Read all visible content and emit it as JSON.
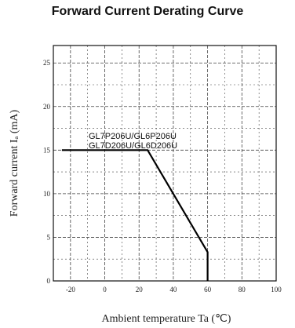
{
  "chart_data": {
    "type": "line",
    "title": "Forward Current Derating Curve",
    "xlabel": "Ambient temperature Ta (℃)",
    "ylabel": "Forward current Iₐ (mA)",
    "xlim": [
      -30,
      100
    ],
    "ylim": [
      0,
      27
    ],
    "x_ticks": [
      -20,
      0,
      20,
      40,
      60,
      80,
      100
    ],
    "x_tick_labels": [
      "-20",
      "0",
      "20",
      "40",
      "60",
      "80",
      "100"
    ],
    "y_ticks": [
      0,
      5,
      10,
      15,
      20,
      25
    ],
    "y_tick_labels": [
      "0",
      "5",
      "10",
      "15",
      "20",
      "25"
    ],
    "grid": true,
    "series": [
      {
        "x": [
          -25,
          25,
          60,
          60
        ],
        "y": [
          15,
          15,
          3.3,
          0
        ]
      }
    ],
    "annotations": [
      "GL7P206U/GL6P206U",
      "GL7D206U/GL6D206U"
    ]
  }
}
